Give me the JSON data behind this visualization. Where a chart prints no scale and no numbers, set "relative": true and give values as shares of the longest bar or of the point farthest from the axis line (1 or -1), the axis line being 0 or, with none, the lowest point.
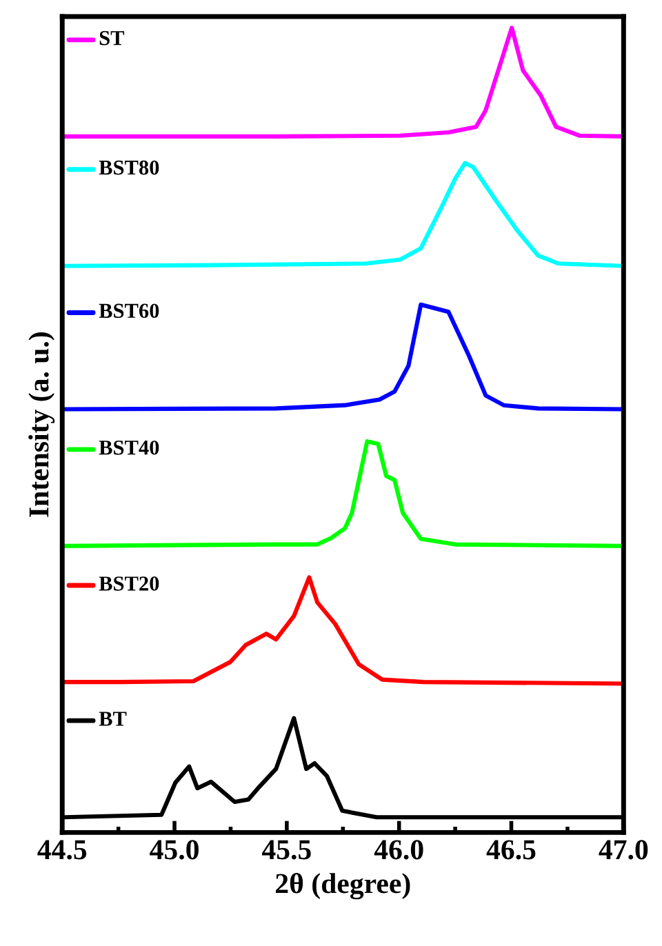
{
  "chart_data": {
    "type": "line",
    "relative": true,
    "xlabel": "2θ (degree)",
    "ylabel": "Intensity (a. u.)",
    "xlim": [
      44.5,
      47.0
    ],
    "xticks": [
      {
        "value": 44.5,
        "label": "44.5"
      },
      {
        "value": 45.0,
        "label": "45.0"
      },
      {
        "value": 45.5,
        "label": "45.5"
      },
      {
        "value": 46.0,
        "label": "46.0"
      },
      {
        "value": 46.5,
        "label": "46.5"
      },
      {
        "value": 47.0,
        "label": "47.0"
      }
    ],
    "grid": false,
    "legend": "top left",
    "marker": "none",
    "line_style": "solid",
    "series": [
      {
        "name": "ST",
        "color": "#ff00ff",
        "x": [
          44.5,
          45.452,
          46.005,
          46.22,
          46.343,
          46.385,
          46.502,
          46.552,
          46.631,
          46.699,
          46.803,
          47.0
        ],
        "values": [
          0.865,
          0.865,
          0.866,
          0.87,
          0.877,
          0.897,
          1.0,
          0.947,
          0.916,
          0.877,
          0.866,
          0.865
        ]
      },
      {
        "name": "BST80",
        "color": "#00ffff",
        "x": [
          44.5,
          45.145,
          45.851,
          46.005,
          46.097,
          46.189,
          46.251,
          46.294,
          46.33,
          46.435,
          46.527,
          46.619,
          46.711,
          47.0
        ],
        "values": [
          0.704,
          0.705,
          0.707,
          0.712,
          0.726,
          0.777,
          0.813,
          0.832,
          0.827,
          0.784,
          0.748,
          0.717,
          0.707,
          0.704
        ]
      },
      {
        "name": "BST60",
        "color": "#0000ff",
        "x": [
          44.5,
          45.452,
          45.759,
          45.913,
          45.98,
          46.042,
          46.097,
          46.22,
          46.312,
          46.386,
          46.466,
          46.619,
          47.0
        ],
        "values": [
          0.526,
          0.527,
          0.531,
          0.538,
          0.548,
          0.58,
          0.656,
          0.647,
          0.592,
          0.543,
          0.531,
          0.527,
          0.526
        ]
      },
      {
        "name": "BST40",
        "color": "#00ff00",
        "x": [
          44.5,
          45.452,
          45.636,
          45.698,
          45.759,
          45.79,
          45.858,
          45.907,
          45.943,
          45.98,
          46.017,
          46.097,
          46.251,
          47.0
        ],
        "values": [
          0.356,
          0.358,
          0.358,
          0.366,
          0.378,
          0.397,
          0.486,
          0.483,
          0.443,
          0.438,
          0.397,
          0.365,
          0.358,
          0.356
        ]
      },
      {
        "name": "BST20",
        "color": "#ff0000",
        "x": [
          44.5,
          44.758,
          45.084,
          45.249,
          45.317,
          45.409,
          45.452,
          45.532,
          45.6,
          45.636,
          45.716,
          45.821,
          45.925,
          46.109,
          47.0
        ],
        "values": [
          0.187,
          0.187,
          0.188,
          0.212,
          0.233,
          0.247,
          0.24,
          0.269,
          0.317,
          0.286,
          0.259,
          0.209,
          0.19,
          0.187,
          0.185
        ]
      },
      {
        "name": "BT",
        "color": "#000000",
        "x": [
          44.512,
          44.942,
          45.004,
          45.065,
          45.102,
          45.163,
          45.268,
          45.329,
          45.372,
          45.452,
          45.532,
          45.587,
          45.624,
          45.679,
          45.747,
          45.9,
          47.0
        ],
        "values": [
          0.019,
          0.022,
          0.062,
          0.082,
          0.055,
          0.063,
          0.038,
          0.041,
          0.055,
          0.079,
          0.142,
          0.079,
          0.086,
          0.07,
          0.027,
          0.019,
          0.019
        ]
      }
    ]
  }
}
